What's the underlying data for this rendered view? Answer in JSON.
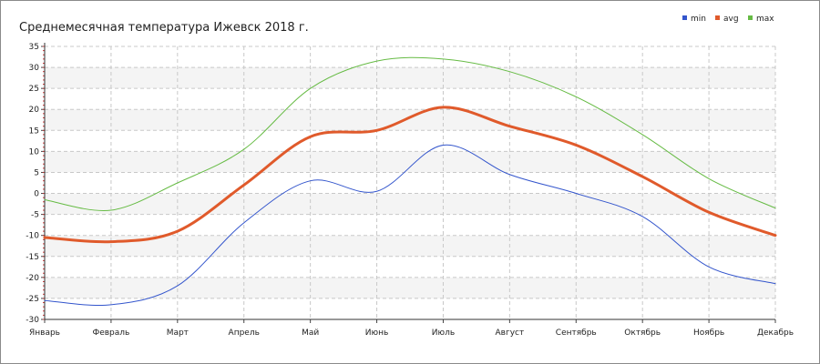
{
  "chart_data": {
    "type": "line",
    "title": "Среднемесячная температура Ижевск  2018 г.",
    "xlabel": "",
    "ylabel": "",
    "categories": [
      "Январь",
      "Февраль",
      "Март",
      "Апрель",
      "Май",
      "Июнь",
      "Июль",
      "Август",
      "Сентябрь",
      "Октябрь",
      "Ноябрь",
      "Декабрь"
    ],
    "ylim": [
      -30,
      35
    ],
    "yticks": [
      35,
      30,
      25,
      20,
      15,
      10,
      5,
      0,
      -5,
      -10,
      -15,
      -20,
      -25,
      -30
    ],
    "grid": true,
    "legend": "top-right",
    "series": [
      {
        "name": "min",
        "color": "#3355cc",
        "width": 1,
        "values": [
          -25.5,
          -26.5,
          -22,
          -7,
          3,
          0.5,
          11.5,
          4.5,
          0,
          -5.5,
          -17.5,
          -21.5
        ]
      },
      {
        "name": "avg",
        "color": "#e05a2b",
        "width": 3,
        "values": [
          -10.5,
          -11.5,
          -9,
          2,
          13.5,
          15,
          20.5,
          16,
          11.5,
          4,
          -4.5,
          -10
        ]
      },
      {
        "name": "max",
        "color": "#66bb44",
        "width": 1,
        "values": [
          -1.5,
          -4,
          2.5,
          10.5,
          25,
          31.5,
          32,
          29,
          23,
          14,
          3.5,
          -3.5
        ]
      }
    ]
  }
}
